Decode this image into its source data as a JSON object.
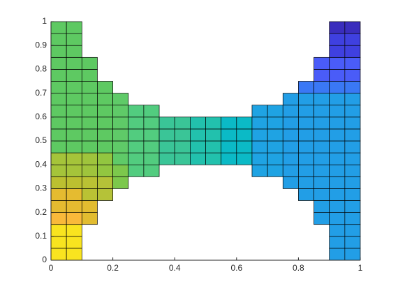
{
  "chart_data": {
    "type": "patch",
    "xlim": [
      0,
      1
    ],
    "ylim": [
      0,
      1
    ],
    "xticks": [
      0,
      0.2,
      0.4,
      0.6,
      0.8,
      1
    ],
    "yticks": [
      0,
      0.1,
      0.2,
      0.3,
      0.4,
      0.5,
      0.6,
      0.7,
      0.8,
      0.9,
      1
    ],
    "cell_size": 0.05,
    "edge_color": "#000000",
    "regions": [
      {
        "x": [
          0,
          0.1
        ],
        "y": [
          0,
          0.15
        ],
        "color": "#f9e41f"
      },
      {
        "x": [
          0,
          0.1
        ],
        "y": [
          0.15,
          0.2
        ],
        "color": "#f9b93a"
      },
      {
        "x": [
          0,
          0.1
        ],
        "y": [
          0.2,
          0.3
        ],
        "color": "#e5bb30"
      },
      {
        "x": [
          0,
          0.1
        ],
        "y": [
          0.3,
          0.35
        ],
        "color": "#bcc030"
      },
      {
        "x": [
          0,
          0.1
        ],
        "y": [
          0.35,
          0.45
        ],
        "color": "#a5c43a"
      },
      {
        "x": [
          0,
          0.1
        ],
        "y": [
          0.45,
          1
        ],
        "color": "#5ec962"
      },
      {
        "x": [
          0.1,
          0.15
        ],
        "y": [
          0.15,
          0.25
        ],
        "color": "#e2bc30"
      },
      {
        "x": [
          0.1,
          0.15
        ],
        "y": [
          0.25,
          0.35
        ],
        "color": "#bac234"
      },
      {
        "x": [
          0.1,
          0.15
        ],
        "y": [
          0.35,
          0.45
        ],
        "color": "#9fc43c"
      },
      {
        "x": [
          0.1,
          0.15
        ],
        "y": [
          0.45,
          0.85
        ],
        "color": "#5ec962"
      },
      {
        "x": [
          0.15,
          0.2
        ],
        "y": [
          0.25,
          0.35
        ],
        "color": "#b5c238"
      },
      {
        "x": [
          0.15,
          0.2
        ],
        "y": [
          0.35,
          0.45
        ],
        "color": "#92c640"
      },
      {
        "x": [
          0.15,
          0.2
        ],
        "y": [
          0.45,
          0.75
        ],
        "color": "#5ec962"
      },
      {
        "x": [
          0.2,
          0.25
        ],
        "y": [
          0.3,
          0.4
        ],
        "color": "#7cc84c"
      },
      {
        "x": [
          0.2,
          0.25
        ],
        "y": [
          0.4,
          0.7
        ],
        "color": "#5fca68"
      },
      {
        "x": [
          0.25,
          0.35
        ],
        "y": [
          0.35,
          0.65
        ],
        "color": "#52cc7f"
      },
      {
        "x": [
          0.35,
          0.45
        ],
        "y": [
          0.4,
          0.6
        ],
        "color": "#3ac597"
      },
      {
        "x": [
          0.45,
          0.55
        ],
        "y": [
          0.4,
          0.6
        ],
        "color": "#22c1ad"
      },
      {
        "x": [
          0.55,
          0.65
        ],
        "y": [
          0.4,
          0.6
        ],
        "color": "#0bbac6"
      },
      {
        "x": [
          0.65,
          0.75
        ],
        "y": [
          0.35,
          0.65
        ],
        "color": "#1fa3e3"
      },
      {
        "x": [
          0.75,
          0.8
        ],
        "y": [
          0.3,
          0.7
        ],
        "color": "#229ee6"
      },
      {
        "x": [
          0.8,
          0.85
        ],
        "y": [
          0.25,
          0.7
        ],
        "color": "#229ee6"
      },
      {
        "x": [
          0.8,
          0.85
        ],
        "y": [
          0.7,
          0.75
        ],
        "color": "#3a78f5"
      },
      {
        "x": [
          0.85,
          0.9
        ],
        "y": [
          0.15,
          0.7
        ],
        "color": "#229ee6"
      },
      {
        "x": [
          0.85,
          0.9
        ],
        "y": [
          0.7,
          0.75
        ],
        "color": "#3a78f5"
      },
      {
        "x": [
          0.85,
          0.9
        ],
        "y": [
          0.75,
          0.85
        ],
        "color": "#4a5cf8"
      },
      {
        "x": [
          0.9,
          1
        ],
        "y": [
          0,
          0.7
        ],
        "color": "#229ee6"
      },
      {
        "x": [
          0.9,
          1
        ],
        "y": [
          0.7,
          0.75
        ],
        "color": "#3a78f5"
      },
      {
        "x": [
          0.9,
          1
        ],
        "y": [
          0.75,
          0.85
        ],
        "color": "#4a5cf8"
      },
      {
        "x": [
          0.9,
          1
        ],
        "y": [
          0.85,
          0.95
        ],
        "color": "#3f40e0"
      },
      {
        "x": [
          0.9,
          1
        ],
        "y": [
          0.95,
          1
        ],
        "color": "#3a2dbd"
      }
    ]
  }
}
